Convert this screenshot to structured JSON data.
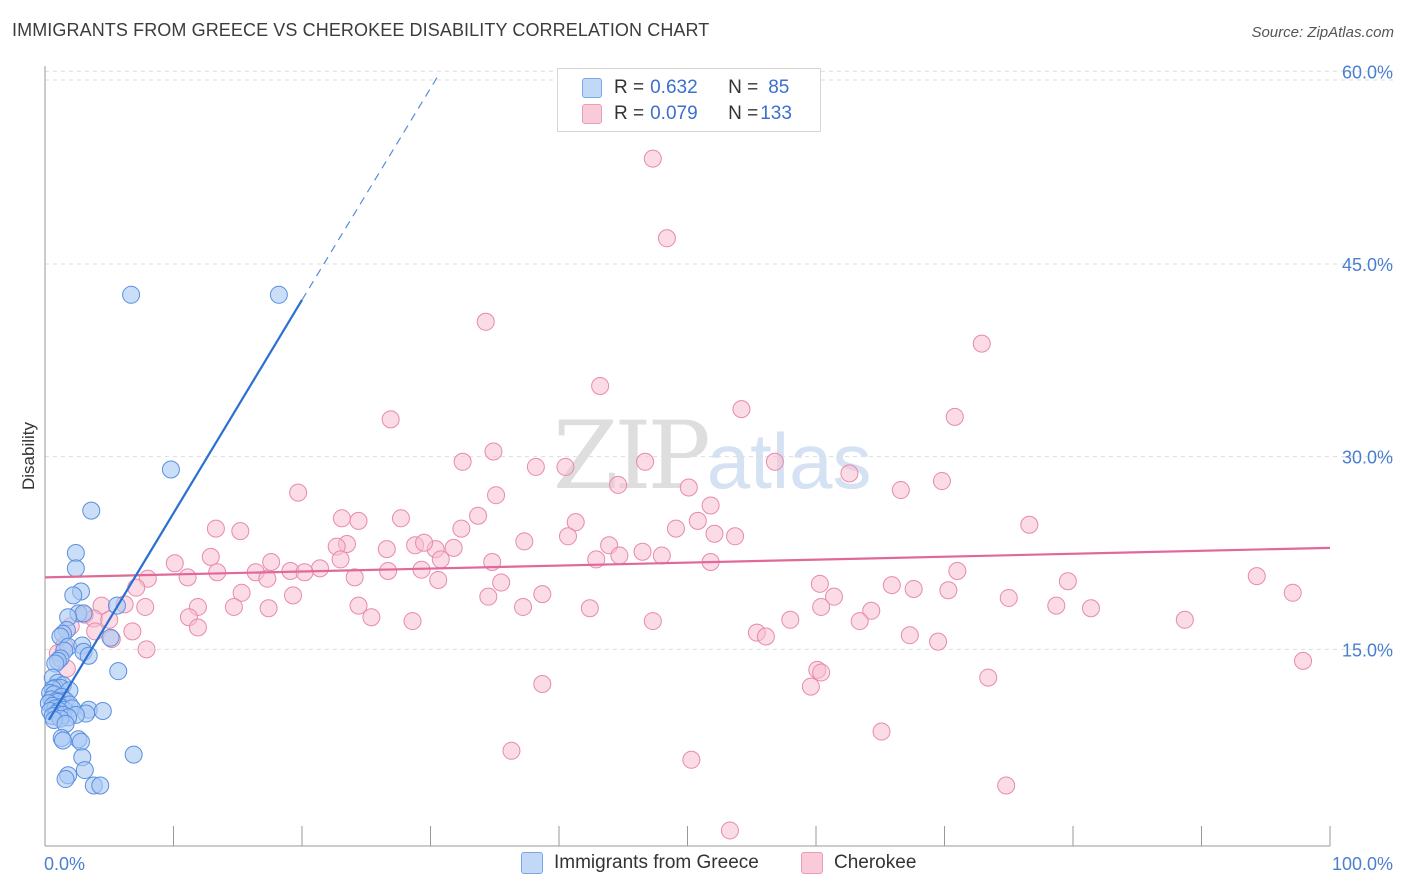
{
  "title": "IMMIGRANTS FROM GREECE VS CHEROKEE DISABILITY CORRELATION CHART",
  "source": "Source: ZipAtlas.com",
  "watermark": {
    "zip": "ZIP",
    "atlas": "atlas"
  },
  "colors": {
    "greece_fill": "#a9c8f3",
    "greece_stroke": "#5b8fe0",
    "greece_line": "#2a6fd1",
    "cherokee_fill": "#f7bdd0",
    "cherokee_stroke": "#e88aac",
    "cherokee_line": "#e0699a",
    "tick_text": "#4a7fd0",
    "grid": "#dddddd"
  },
  "legend": {
    "rows": [
      {
        "r_label": "R = ",
        "r_value": "0.632",
        "n_label": "N = ",
        "n_value": "85"
      },
      {
        "r_label": "R = ",
        "r_value": "0.079",
        "n_label": "N = ",
        "n_value": "133"
      }
    ]
  },
  "bottom_legend": {
    "greece": "Immigrants from Greece",
    "cherokee": "Cherokee"
  },
  "chart_data": {
    "type": "scatter",
    "title": "IMMIGRANTS FROM GREECE VS CHEROKEE DISABILITY CORRELATION CHART",
    "xlabel": "",
    "ylabel": "Disability",
    "xlim": [
      0,
      100
    ],
    "ylim": [
      0,
      60
    ],
    "x_tick_labels": [
      "0.0%",
      "100.0%"
    ],
    "y_ticks": [
      15,
      30,
      45,
      60
    ],
    "y_tick_labels": [
      "15.0%",
      "30.0%",
      "45.0%",
      "60.0%"
    ],
    "grid": true,
    "legend_position": "top-center",
    "series": [
      {
        "name": "Immigrants from Greece",
        "r": 0.632,
        "n": 85,
        "trend": {
          "x0": 0.3,
          "y0": 9.5,
          "x1": 20.0,
          "y1": 42.2,
          "dashed_to_x": 30.5,
          "dashed_to_y": 59.5
        },
        "points": [
          [
            6.7,
            42.6
          ],
          [
            18.2,
            42.6
          ],
          [
            9.8,
            29.0
          ],
          [
            3.6,
            25.8
          ],
          [
            2.4,
            22.5
          ],
          [
            2.4,
            21.3
          ],
          [
            2.8,
            19.5
          ],
          [
            2.2,
            19.2
          ],
          [
            5.6,
            18.4
          ],
          [
            2.6,
            17.8
          ],
          [
            3.0,
            17.8
          ],
          [
            1.8,
            17.5
          ],
          [
            1.7,
            16.5
          ],
          [
            1.4,
            16.2
          ],
          [
            1.2,
            16.0
          ],
          [
            5.1,
            15.9
          ],
          [
            1.8,
            15.2
          ],
          [
            2.9,
            15.3
          ],
          [
            1.5,
            14.9
          ],
          [
            3.0,
            14.8
          ],
          [
            3.4,
            14.5
          ],
          [
            1.2,
            14.3
          ],
          [
            1.0,
            14.1
          ],
          [
            0.8,
            13.9
          ],
          [
            5.7,
            13.3
          ],
          [
            0.6,
            12.8
          ],
          [
            1.0,
            12.4
          ],
          [
            1.4,
            12.2
          ],
          [
            0.8,
            12.0
          ],
          [
            1.2,
            12.0
          ],
          [
            0.6,
            11.9
          ],
          [
            1.9,
            11.8
          ],
          [
            0.4,
            11.6
          ],
          [
            0.7,
            11.5
          ],
          [
            1.3,
            11.3
          ],
          [
            0.5,
            11.1
          ],
          [
            0.9,
            11.0
          ],
          [
            1.6,
            11.0
          ],
          [
            1.0,
            10.9
          ],
          [
            0.3,
            10.8
          ],
          [
            1.9,
            10.7
          ],
          [
            0.6,
            10.6
          ],
          [
            1.2,
            10.5
          ],
          [
            0.8,
            10.4
          ],
          [
            1.5,
            10.3
          ],
          [
            2.1,
            10.4
          ],
          [
            0.4,
            10.2
          ],
          [
            1.1,
            10.2
          ],
          [
            3.4,
            10.3
          ],
          [
            4.5,
            10.2
          ],
          [
            3.2,
            10.0
          ],
          [
            0.9,
            10.0
          ],
          [
            1.4,
            9.9
          ],
          [
            2.4,
            9.9
          ],
          [
            0.6,
            9.8
          ],
          [
            1.8,
            9.7
          ],
          [
            1.2,
            9.6
          ],
          [
            0.7,
            9.5
          ],
          [
            1.6,
            9.2
          ],
          [
            1.3,
            8.1
          ],
          [
            2.6,
            8.0
          ],
          [
            1.4,
            7.9
          ],
          [
            2.8,
            7.8
          ],
          [
            6.9,
            6.8
          ],
          [
            2.9,
            6.6
          ],
          [
            3.1,
            5.6
          ],
          [
            1.8,
            5.2
          ],
          [
            1.6,
            4.9
          ],
          [
            3.8,
            4.4
          ],
          [
            4.3,
            4.4
          ]
        ]
      },
      {
        "name": "Cherokee",
        "r": 0.079,
        "n": 133,
        "trend": {
          "x0": 0.0,
          "y0": 20.6,
          "x1": 100.0,
          "y1": 22.9
        },
        "points": [
          [
            47.3,
            53.2
          ],
          [
            48.4,
            47.0
          ],
          [
            34.3,
            40.5
          ],
          [
            72.9,
            38.8
          ],
          [
            43.2,
            35.5
          ],
          [
            54.2,
            33.7
          ],
          [
            70.8,
            33.1
          ],
          [
            26.9,
            32.9
          ],
          [
            34.9,
            30.4
          ],
          [
            32.5,
            29.6
          ],
          [
            46.7,
            29.6
          ],
          [
            38.2,
            29.2
          ],
          [
            40.5,
            29.2
          ],
          [
            56.8,
            29.6
          ],
          [
            62.6,
            28.7
          ],
          [
            69.8,
            28.1
          ],
          [
            44.6,
            27.8
          ],
          [
            50.1,
            27.6
          ],
          [
            66.6,
            27.4
          ],
          [
            19.7,
            27.2
          ],
          [
            35.1,
            27.0
          ],
          [
            51.8,
            26.2
          ],
          [
            23.1,
            25.2
          ],
          [
            24.4,
            25.0
          ],
          [
            27.7,
            25.2
          ],
          [
            33.7,
            25.4
          ],
          [
            41.3,
            24.9
          ],
          [
            50.8,
            25.0
          ],
          [
            76.6,
            24.7
          ],
          [
            13.3,
            24.4
          ],
          [
            15.2,
            24.2
          ],
          [
            32.4,
            24.4
          ],
          [
            49.1,
            24.4
          ],
          [
            52.1,
            24.0
          ],
          [
            53.7,
            23.8
          ],
          [
            40.7,
            23.8
          ],
          [
            37.3,
            23.4
          ],
          [
            23.5,
            23.2
          ],
          [
            22.7,
            23.0
          ],
          [
            28.8,
            23.1
          ],
          [
            30.4,
            22.8
          ],
          [
            31.8,
            22.9
          ],
          [
            26.6,
            22.8
          ],
          [
            29.5,
            23.3
          ],
          [
            43.9,
            23.1
          ],
          [
            46.5,
            22.6
          ],
          [
            48.0,
            22.3
          ],
          [
            23.0,
            22.0
          ],
          [
            12.9,
            22.2
          ],
          [
            30.8,
            22.0
          ],
          [
            34.8,
            21.8
          ],
          [
            42.9,
            22.0
          ],
          [
            44.7,
            22.3
          ],
          [
            51.8,
            21.8
          ],
          [
            10.1,
            21.7
          ],
          [
            17.6,
            21.8
          ],
          [
            26.7,
            21.1
          ],
          [
            29.3,
            21.2
          ],
          [
            19.1,
            21.1
          ],
          [
            21.4,
            21.3
          ],
          [
            16.4,
            21.0
          ],
          [
            13.4,
            21.0
          ],
          [
            17.3,
            20.5
          ],
          [
            11.1,
            20.6
          ],
          [
            8.0,
            20.5
          ],
          [
            24.1,
            20.6
          ],
          [
            20.2,
            21.0
          ],
          [
            30.6,
            20.4
          ],
          [
            35.5,
            20.2
          ],
          [
            60.3,
            20.1
          ],
          [
            65.9,
            20.0
          ],
          [
            71.0,
            21.1
          ],
          [
            79.6,
            20.3
          ],
          [
            94.3,
            20.7
          ],
          [
            7.1,
            19.8
          ],
          [
            15.3,
            19.4
          ],
          [
            19.3,
            19.2
          ],
          [
            34.5,
            19.1
          ],
          [
            38.7,
            19.3
          ],
          [
            61.4,
            19.1
          ],
          [
            67.6,
            19.7
          ],
          [
            70.3,
            19.6
          ],
          [
            75.0,
            19.0
          ],
          [
            97.1,
            19.4
          ],
          [
            4.4,
            18.4
          ],
          [
            6.2,
            18.5
          ],
          [
            7.8,
            18.3
          ],
          [
            11.9,
            18.3
          ],
          [
            17.4,
            18.2
          ],
          [
            14.7,
            18.3
          ],
          [
            24.4,
            18.4
          ],
          [
            37.2,
            18.3
          ],
          [
            42.4,
            18.2
          ],
          [
            60.4,
            18.3
          ],
          [
            64.3,
            18.0
          ],
          [
            78.7,
            18.4
          ],
          [
            81.4,
            18.2
          ],
          [
            3.1,
            17.7
          ],
          [
            3.8,
            17.4
          ],
          [
            5.0,
            17.3
          ],
          [
            11.2,
            17.5
          ],
          [
            25.4,
            17.5
          ],
          [
            28.6,
            17.2
          ],
          [
            47.3,
            17.2
          ],
          [
            58.0,
            17.3
          ],
          [
            63.4,
            17.2
          ],
          [
            88.7,
            17.3
          ],
          [
            2.0,
            16.8
          ],
          [
            3.9,
            16.4
          ],
          [
            6.8,
            16.4
          ],
          [
            11.9,
            16.7
          ],
          [
            55.4,
            16.3
          ],
          [
            56.1,
            16.0
          ],
          [
            67.3,
            16.1
          ],
          [
            69.5,
            15.6
          ],
          [
            5.2,
            15.8
          ],
          [
            1.5,
            15.3
          ],
          [
            7.9,
            15.0
          ],
          [
            1.0,
            14.7
          ],
          [
            97.9,
            14.1
          ],
          [
            1.7,
            13.5
          ],
          [
            60.1,
            13.4
          ],
          [
            60.4,
            13.2
          ],
          [
            73.4,
            12.8
          ],
          [
            38.7,
            12.3
          ],
          [
            59.6,
            12.1
          ],
          [
            65.1,
            8.6
          ],
          [
            36.3,
            7.1
          ],
          [
            50.3,
            6.4
          ],
          [
            74.8,
            4.4
          ],
          [
            53.3,
            0.9
          ]
        ]
      }
    ]
  }
}
